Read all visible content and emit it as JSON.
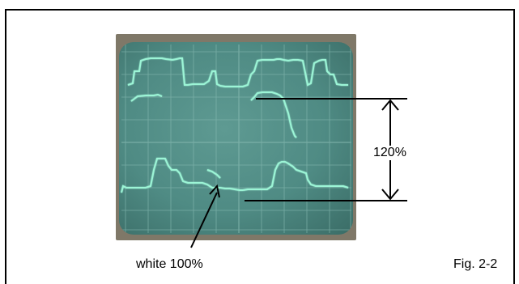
{
  "figure": {
    "caption": "Fig. 2-2",
    "amplitude_label": "120%",
    "white_level_label": "white 100%"
  },
  "colors": {
    "trace": "#9cf5d6",
    "screen": "#5e9a92",
    "photo_frame": "#7f7868",
    "annotation": "#000000"
  }
}
